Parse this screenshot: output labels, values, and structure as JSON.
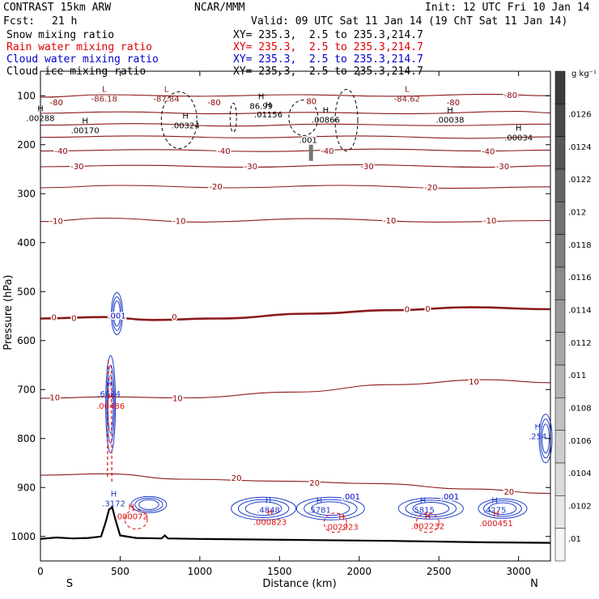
{
  "header": {
    "model": "CONTRAST 15km ARW",
    "org": "NCAR/MMM",
    "init": "Init: 12 UTC Fri 10 Jan 14",
    "fcst_label": "Fcst:",
    "fcst_value": "21 h",
    "valid": "Valid: 09 UTC Sat 11 Jan 14 (19 ChT Sat 11 Jan 14)",
    "fields": [
      {
        "name": "Snow mixing ratio",
        "xy": "XY= 235.3,  2.5 to 235.3,214.7",
        "color": "#000000"
      },
      {
        "name": "Rain water mixing ratio",
        "xy": "XY= 235.3,  2.5 to 235.3,214.7",
        "color": "#e00000"
      },
      {
        "name": "Cloud water mixing ratio",
        "xy": "XY= 235.3,  2.5 to 235.3,214.7",
        "color": "#0000c8"
      },
      {
        "name": "Cloud ice mixing ratio",
        "xy": "XY= 235.3,  2.5 to 235.3,214.7",
        "color": "#000000"
      }
    ]
  },
  "chart_data": {
    "type": "line",
    "title": "CONTRAST 15km ARW cross-section",
    "xlabel": "Distance (km)",
    "ylabel": "Pressure (hPa)",
    "xlim": [
      0,
      3200
    ],
    "ylim": [
      1050,
      50
    ],
    "x_ticks": [
      0,
      500,
      1000,
      1500,
      2000,
      2500,
      3000
    ],
    "y_ticks": [
      100,
      200,
      300,
      400,
      500,
      600,
      700,
      800,
      900,
      1000
    ],
    "x_end_labels": {
      "left": "S",
      "right": "N"
    },
    "temperature_isotherms_C": [
      {
        "value": -80,
        "p": [
          [
            0,
            103
          ],
          [
            400,
            98
          ],
          [
            1000,
            101
          ],
          [
            1600,
            98
          ],
          [
            2200,
            101
          ],
          [
            2800,
            97
          ],
          [
            3200,
            100
          ]
        ]
      },
      {
        "value": -70,
        "p": [
          [
            0,
            136
          ],
          [
            500,
            133
          ],
          [
            1100,
            137
          ],
          [
            1700,
            134
          ],
          [
            2300,
            137
          ],
          [
            3000,
            132
          ],
          [
            3200,
            135
          ]
        ]
      },
      {
        "value": -60,
        "p": [
          [
            0,
            160
          ],
          [
            600,
            157
          ],
          [
            1200,
            162
          ],
          [
            1800,
            158
          ],
          [
            2500,
            161
          ],
          [
            3200,
            158
          ]
        ]
      },
      {
        "value": -50,
        "p": [
          [
            0,
            185
          ],
          [
            600,
            182
          ],
          [
            1300,
            186
          ],
          [
            2000,
            182
          ],
          [
            2700,
            187
          ],
          [
            3200,
            184
          ]
        ]
      },
      {
        "value": -40,
        "p": [
          [
            0,
            213
          ],
          [
            700,
            210
          ],
          [
            1400,
            214
          ],
          [
            2100,
            209
          ],
          [
            2800,
            213
          ],
          [
            3200,
            211
          ]
        ]
      },
      {
        "value": -30,
        "p": [
          [
            0,
            245
          ],
          [
            600,
            242
          ],
          [
            1300,
            246
          ],
          [
            2000,
            241
          ],
          [
            2800,
            246
          ],
          [
            3200,
            243
          ]
        ]
      },
      {
        "value": -20,
        "p": [
          [
            0,
            288
          ],
          [
            500,
            283
          ],
          [
            1200,
            288
          ],
          [
            1900,
            283
          ],
          [
            2600,
            289
          ],
          [
            3200,
            286
          ]
        ]
      },
      {
        "value": -10,
        "p": [
          [
            0,
            357
          ],
          [
            400,
            350
          ],
          [
            1000,
            358
          ],
          [
            1700,
            351
          ],
          [
            2500,
            358
          ],
          [
            3200,
            355
          ]
        ]
      },
      {
        "value": 0,
        "p": [
          [
            0,
            555
          ],
          [
            400,
            552
          ],
          [
            700,
            558
          ],
          [
            1100,
            555
          ],
          [
            1700,
            545
          ],
          [
            2200,
            538
          ],
          [
            2700,
            532
          ],
          [
            3200,
            536
          ]
        ]
      },
      {
        "value": 10,
        "p": [
          [
            0,
            718
          ],
          [
            420,
            715
          ],
          [
            900,
            717
          ],
          [
            1600,
            705
          ],
          [
            2200,
            690
          ],
          [
            2800,
            680
          ],
          [
            3200,
            686
          ]
        ]
      },
      {
        "value": 20,
        "p": [
          [
            0,
            875
          ],
          [
            400,
            872
          ],
          [
            900,
            883
          ],
          [
            1500,
            887
          ],
          [
            2100,
            892
          ],
          [
            2700,
            903
          ],
          [
            3200,
            912
          ]
        ]
      }
    ],
    "max_labels": [
      {
        "type": "H",
        "value": ".00288",
        "x": 0,
        "p": 145
      },
      {
        "type": "L",
        "value": "-86.18",
        "x": 400,
        "p": 105
      },
      {
        "type": "H",
        "value": ".00170",
        "x": 280,
        "p": 170
      },
      {
        "type": "L",
        "value": "-87.84",
        "x": 790,
        "p": 105
      },
      {
        "type": "H",
        "value": ".00324",
        "x": 910,
        "p": 160
      },
      {
        "type": "H",
        "value": "86.99",
        "x": 1385,
        "p": 120
      },
      {
        "type": "H",
        "value": ".01156",
        "x": 1430,
        "p": 138
      },
      {
        "type": "H",
        "value": ".00866",
        "x": 1790,
        "p": 148
      },
      {
        "type": "L",
        "value": "-84.62",
        "x": 2300,
        "p": 105
      },
      {
        "type": "H",
        "value": ".00038",
        "x": 2570,
        "p": 148
      },
      {
        "type": "H",
        "value": ".00034",
        "x": 3000,
        "p": 185
      },
      {
        "type": "H",
        "value": ".6684",
        "x": 430,
        "p": 708
      },
      {
        "type": "H",
        "value": ".00486",
        "x": 440,
        "p": 733
      },
      {
        "type": "H",
        "value": ".3172",
        "x": 460,
        "p": 932
      },
      {
        "type": "H",
        "value": ".000072",
        "x": 570,
        "p": 958
      },
      {
        "type": "H",
        "value": ".4848",
        "x": 1430,
        "p": 945
      },
      {
        "type": "H",
        "value": ".000823",
        "x": 1440,
        "p": 970
      },
      {
        "type": "H",
        "value": ".5781",
        "x": 1750,
        "p": 945
      },
      {
        "type": "H",
        "value": ".002923",
        "x": 1890,
        "p": 980
      },
      {
        "type": "H",
        "value": ".5815",
        "x": 2400,
        "p": 945
      },
      {
        "type": "H",
        "value": ".002232",
        "x": 2430,
        "p": 978
      },
      {
        "type": "H",
        "value": ".4275",
        "x": 2850,
        "p": 945
      },
      {
        "type": "H",
        "value": ".000451",
        "x": 2860,
        "p": 972
      },
      {
        "type": "H",
        "value": ".254",
        "x": 3120,
        "p": 795
      }
    ],
    "contour_labels": [
      {
        "text": "-80",
        "x": 100,
        "p": 113,
        "color": "#8b0000"
      },
      {
        "text": "-80",
        "x": 1090,
        "p": 113,
        "color": "#8b0000"
      },
      {
        "text": "-80",
        "x": 2590,
        "p": 113,
        "color": "#8b0000"
      },
      {
        "text": "-80",
        "x": 2950,
        "p": 98,
        "color": "#8b0000"
      },
      {
        "text": "-40",
        "x": 1150,
        "p": 212,
        "color": "#8b0000"
      },
      {
        "text": "-40",
        "x": 1800,
        "p": 212,
        "color": "#8b0000"
      },
      {
        "text": "-40",
        "x": 130,
        "p": 212,
        "color": "#8b0000"
      },
      {
        "text": "-40",
        "x": 2810,
        "p": 213,
        "color": "#8b0000"
      },
      {
        "text": "-30",
        "x": 230,
        "p": 243,
        "color": "#8b0000"
      },
      {
        "text": "-30",
        "x": 1320,
        "p": 243,
        "color": "#8b0000"
      },
      {
        "text": "-30",
        "x": 2050,
        "p": 243,
        "color": "#8b0000"
      },
      {
        "text": "-30",
        "x": 2900,
        "p": 243,
        "color": "#8b0000"
      },
      {
        "text": "-20",
        "x": 1100,
        "p": 285,
        "color": "#8b0000"
      },
      {
        "text": "-20",
        "x": 2450,
        "p": 286,
        "color": "#8b0000"
      },
      {
        "text": "-10",
        "x": 100,
        "p": 355,
        "color": "#8b0000"
      },
      {
        "text": "-10",
        "x": 870,
        "p": 355,
        "color": "#8b0000"
      },
      {
        "text": "-10",
        "x": 2190,
        "p": 354,
        "color": "#8b0000"
      },
      {
        "text": "-10",
        "x": 2820,
        "p": 354,
        "color": "#8b0000"
      },
      {
        "text": "0",
        "x": 85,
        "p": 552,
        "color": "#8b0000"
      },
      {
        "text": "0",
        "x": 210,
        "p": 553,
        "color": "#8b0000"
      },
      {
        "text": "0",
        "x": 840,
        "p": 551,
        "color": "#8b0000"
      },
      {
        "text": "0",
        "x": 2300,
        "p": 535,
        "color": "#8b0000"
      },
      {
        "text": "0",
        "x": 2430,
        "p": 534,
        "color": "#8b0000"
      },
      {
        "text": "10",
        "x": 90,
        "p": 715,
        "color": "#8b0000"
      },
      {
        "text": "10",
        "x": 860,
        "p": 717,
        "color": "#8b0000"
      },
      {
        "text": "10",
        "x": 2720,
        "p": 683,
        "color": "#8b0000"
      },
      {
        "text": "20",
        "x": 1230,
        "p": 880,
        "color": "#8b0000"
      },
      {
        "text": "20",
        "x": 1720,
        "p": 890,
        "color": "#8b0000"
      },
      {
        "text": "20",
        "x": 2940,
        "p": 908,
        "color": "#8b0000"
      },
      {
        "text": ".001",
        "x": 480,
        "p": 548,
        "color": "#0000c8"
      },
      {
        "text": ".001",
        "x": 1950,
        "p": 918,
        "color": "#0000c8"
      },
      {
        "text": ".001",
        "x": 2570,
        "p": 918,
        "color": "#0000c8"
      },
      {
        "text": ".001",
        "x": 1680,
        "p": 190,
        "color": "#000000"
      },
      {
        "text": "80",
        "x": 1700,
        "p": 110,
        "color": "#8b0000"
      }
    ],
    "terrain": [
      [
        0,
        1005
      ],
      [
        100,
        1002
      ],
      [
        200,
        1004
      ],
      [
        300,
        1003
      ],
      [
        380,
        1000
      ],
      [
        410,
        970
      ],
      [
        430,
        945
      ],
      [
        450,
        940
      ],
      [
        470,
        965
      ],
      [
        500,
        998
      ],
      [
        600,
        1003
      ],
      [
        760,
        1004
      ],
      [
        780,
        998
      ],
      [
        800,
        1004
      ],
      [
        1000,
        1005
      ],
      [
        1600,
        1007
      ],
      [
        2200,
        1009
      ],
      [
        2800,
        1012
      ],
      [
        3200,
        1013
      ]
    ],
    "colorbar": {
      "unit": "g kg⁻¹",
      "ticks": [
        ".0126",
        ".0124",
        ".0122",
        ".012",
        ".0118",
        ".0116",
        ".0114",
        ".0112",
        ".011",
        ".0108",
        ".0106",
        ".0104",
        ".0102",
        ".01"
      ]
    }
  }
}
